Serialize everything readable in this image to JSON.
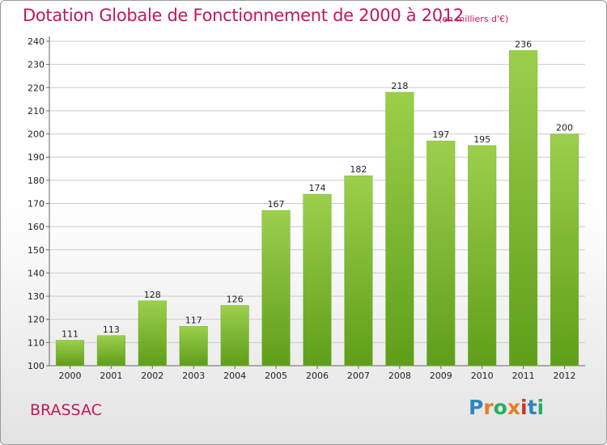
{
  "header": {
    "title": "Dotation Globale de Fonctionnement de 2000 à 2012",
    "unit": "(en milliers d'€)"
  },
  "footer": {
    "commune": "BRASSAC",
    "logo_text": "Proxiti",
    "logo_colors": [
      "#2e86c1",
      "#e67e22",
      "#27ae60",
      "#e67e22",
      "#c0392b",
      "#2e86c1",
      "#27ae60"
    ]
  },
  "colors": {
    "bar_top": "#9ccf4c",
    "bar_bottom": "#5f9e1a",
    "grid": "#cccccc",
    "axis": "#666666",
    "text": "#222222",
    "accent": "#c2185b"
  },
  "chart_data": {
    "type": "bar",
    "title": "Dotation Globale de Fonctionnement de 2000 à 2012",
    "subtitle": "(en milliers d'€)",
    "categories": [
      "2000",
      "2001",
      "2002",
      "2003",
      "2004",
      "2005",
      "2006",
      "2007",
      "2008",
      "2009",
      "2010",
      "2011",
      "2012"
    ],
    "values": [
      111,
      113,
      128,
      117,
      126,
      167,
      174,
      182,
      218,
      197,
      195,
      236,
      200
    ],
    "ylim": [
      100,
      240
    ],
    "yticks": [
      100,
      110,
      120,
      130,
      140,
      150,
      160,
      170,
      180,
      190,
      200,
      210,
      220,
      230,
      240
    ],
    "grid": true,
    "legend": "none",
    "data_labels": true
  }
}
